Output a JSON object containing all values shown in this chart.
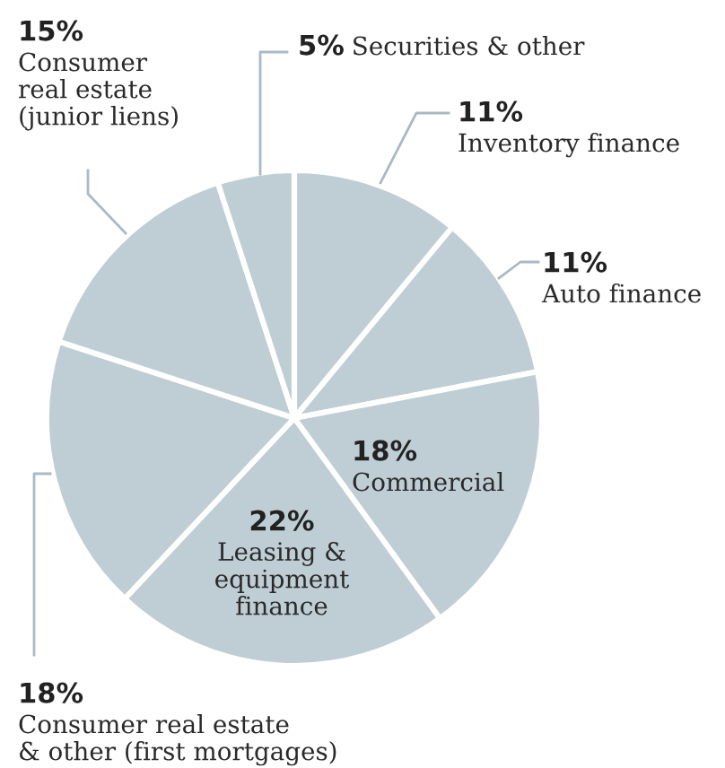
{
  "chart_data": {
    "type": "pie",
    "categories": [
      "Inventory finance",
      "Auto finance",
      "Commercial",
      "Leasing &\nequipment\nfinance",
      "Consumer real estate\n& other (first mortgages)",
      "Consumer\nreal estate\n(junior liens)",
      "Securities & other"
    ],
    "values": [
      11,
      11,
      18,
      22,
      18,
      15,
      5
    ],
    "value_labels": [
      "11%",
      "11%",
      "18%",
      "22%",
      "18%",
      "15%",
      "5%"
    ],
    "colors": [
      "#bfcdd5",
      "#bfcdd5",
      "#bfcdd5",
      "#bfcdd5",
      "#bfcdd5",
      "#bfcdd5",
      "#bfcdd5"
    ]
  }
}
